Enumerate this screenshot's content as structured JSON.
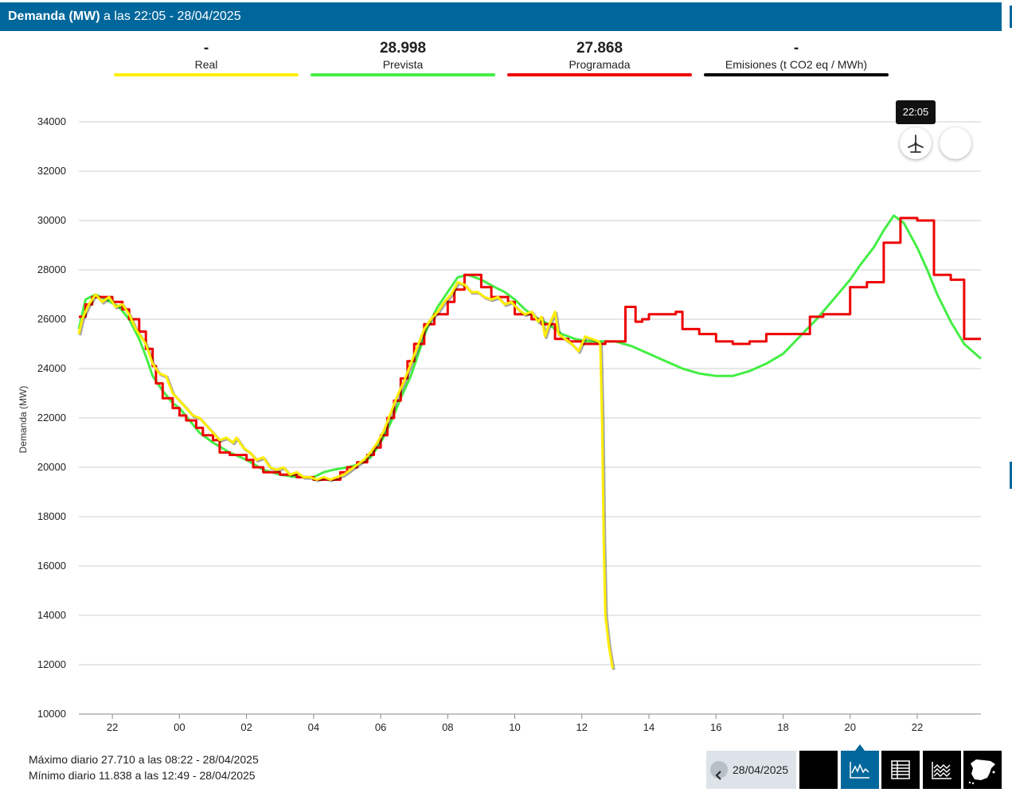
{
  "header": {
    "metric": "Demanda (MW)",
    "time_text": "a las 22:05 - 28/04/2025"
  },
  "stats": [
    {
      "value": "-",
      "label": "Real",
      "color": "#ffee00"
    },
    {
      "value": "28.998",
      "label": "Prevista",
      "color": "#44ee44"
    },
    {
      "value": "27.868",
      "label": "Programada",
      "color": "#ee0000"
    },
    {
      "value": "-",
      "label": "Emisiones (t CO2 eq / MWh)",
      "color": "#000000"
    }
  ],
  "tooltip": {
    "time": "22:05"
  },
  "icons": {
    "wind": "wind-turbine-icon",
    "prev": "chevron-left-icon",
    "chart": "line-chart-icon",
    "table": "table-icon",
    "area": "area-chart-icon",
    "map": "spain-map-icon"
  },
  "daily": {
    "max": "Máximo diario 27.710 a las 08:22 - 28/04/2025",
    "min": "Mínimo diario 11.838 a las 12:49 - 28/04/2025"
  },
  "date_picker": {
    "value": "28/04/2025"
  },
  "chart_data": {
    "type": "line",
    "ylabel": "Demanda (MW)",
    "ylim": [
      10000,
      35000
    ],
    "yticks": [
      10000,
      12000,
      14000,
      16000,
      18000,
      20000,
      22000,
      24000,
      26000,
      28000,
      30000,
      32000,
      34000
    ],
    "xlim": [
      -3,
      23.9
    ],
    "xticks": [
      {
        "v": -2,
        "l": "22"
      },
      {
        "v": 0,
        "l": "00"
      },
      {
        "v": 2,
        "l": "02"
      },
      {
        "v": 4,
        "l": "04"
      },
      {
        "v": 6,
        "l": "06"
      },
      {
        "v": 8,
        "l": "08"
      },
      {
        "v": 10,
        "l": "10"
      },
      {
        "v": 12,
        "l": "12"
      },
      {
        "v": 14,
        "l": "14"
      },
      {
        "v": 16,
        "l": "16"
      },
      {
        "v": 18,
        "l": "18"
      },
      {
        "v": 20,
        "l": "20"
      },
      {
        "v": 22,
        "l": "22"
      }
    ],
    "grid": true,
    "series": [
      {
        "name": "Prevista",
        "color": "#44ee44",
        "step": false,
        "points": [
          [
            -3,
            25600
          ],
          [
            -2.8,
            26800
          ],
          [
            -2.5,
            27000
          ],
          [
            -2.2,
            26800
          ],
          [
            -1.8,
            26500
          ],
          [
            -1.5,
            26000
          ],
          [
            -1.2,
            25200
          ],
          [
            -1,
            24500
          ],
          [
            -0.8,
            23700
          ],
          [
            -0.5,
            23100
          ],
          [
            -0.2,
            22600
          ],
          [
            0,
            22400
          ],
          [
            0.3,
            21900
          ],
          [
            0.6,
            21400
          ],
          [
            1,
            21000
          ],
          [
            1.5,
            20600
          ],
          [
            2,
            20300
          ],
          [
            2.5,
            19900
          ],
          [
            3,
            19700
          ],
          [
            3.5,
            19600
          ],
          [
            4,
            19600
          ],
          [
            4.3,
            19800
          ],
          [
            4.6,
            19900
          ],
          [
            5,
            20000
          ],
          [
            5.3,
            20100
          ],
          [
            5.7,
            20400
          ],
          [
            6,
            21000
          ],
          [
            6.3,
            21800
          ],
          [
            6.6,
            22800
          ],
          [
            6.9,
            23700
          ],
          [
            7.1,
            24500
          ],
          [
            7.4,
            25700
          ],
          [
            7.7,
            26500
          ],
          [
            8,
            27100
          ],
          [
            8.3,
            27700
          ],
          [
            8.6,
            27800
          ],
          [
            9,
            27600
          ],
          [
            9.4,
            27300
          ],
          [
            9.7,
            27100
          ],
          [
            10,
            26800
          ],
          [
            10.3,
            26400
          ],
          [
            10.6,
            26100
          ],
          [
            11,
            25800
          ],
          [
            11.4,
            25400
          ],
          [
            11.8,
            25200
          ],
          [
            12.2,
            25100
          ],
          [
            12.6,
            25100
          ],
          [
            13,
            25100
          ],
          [
            13.5,
            24900
          ],
          [
            14,
            24600
          ],
          [
            14.5,
            24300
          ],
          [
            15,
            24000
          ],
          [
            15.5,
            23800
          ],
          [
            16,
            23700
          ],
          [
            16.5,
            23700
          ],
          [
            17,
            23900
          ],
          [
            17.5,
            24200
          ],
          [
            18,
            24600
          ],
          [
            18.5,
            25300
          ],
          [
            19,
            26000
          ],
          [
            19.5,
            26800
          ],
          [
            20,
            27600
          ],
          [
            20.3,
            28200
          ],
          [
            20.7,
            28900
          ],
          [
            21,
            29600
          ],
          [
            21.3,
            30200
          ],
          [
            21.6,
            29900
          ],
          [
            22,
            28900
          ],
          [
            22.3,
            28000
          ],
          [
            22.6,
            27000
          ],
          [
            23,
            25900
          ],
          [
            23.4,
            25000
          ],
          [
            23.9,
            24400
          ]
        ]
      },
      {
        "name": "Programada",
        "color": "#ee0000",
        "step": true,
        "points": [
          [
            -3,
            26100
          ],
          [
            -2.8,
            26600
          ],
          [
            -2.6,
            26900
          ],
          [
            -2,
            26700
          ],
          [
            -1.7,
            26400
          ],
          [
            -1.5,
            26000
          ],
          [
            -1.2,
            25500
          ],
          [
            -1,
            24800
          ],
          [
            -0.8,
            24100
          ],
          [
            -0.7,
            23400
          ],
          [
            -0.5,
            22800
          ],
          [
            -0.2,
            22400
          ],
          [
            0,
            22100
          ],
          [
            0.2,
            21900
          ],
          [
            0.5,
            21600
          ],
          [
            0.7,
            21300
          ],
          [
            1,
            21100
          ],
          [
            1.2,
            20600
          ],
          [
            1.5,
            20500
          ],
          [
            2,
            20300
          ],
          [
            2.2,
            20000
          ],
          [
            2.5,
            19800
          ],
          [
            3,
            19700
          ],
          [
            3.5,
            19600
          ],
          [
            4,
            19500
          ],
          [
            4.5,
            19500
          ],
          [
            4.8,
            19800
          ],
          [
            5,
            20000
          ],
          [
            5.3,
            20200
          ],
          [
            5.6,
            20500
          ],
          [
            5.8,
            20800
          ],
          [
            6,
            21300
          ],
          [
            6.2,
            22000
          ],
          [
            6.4,
            22700
          ],
          [
            6.6,
            23600
          ],
          [
            6.8,
            24300
          ],
          [
            7,
            25000
          ],
          [
            7.3,
            25800
          ],
          [
            7.6,
            26200
          ],
          [
            8,
            26700
          ],
          [
            8.2,
            27200
          ],
          [
            8.5,
            27800
          ],
          [
            9,
            27300
          ],
          [
            9.3,
            26900
          ],
          [
            9.8,
            26700
          ],
          [
            10,
            26200
          ],
          [
            10.5,
            26000
          ],
          [
            10.8,
            25800
          ],
          [
            11.2,
            25200
          ],
          [
            11.6,
            25100
          ],
          [
            12,
            25000
          ],
          [
            12.5,
            25000
          ],
          [
            12.7,
            25100
          ],
          [
            13.3,
            26500
          ],
          [
            13.6,
            25900
          ],
          [
            13.8,
            26000
          ],
          [
            14,
            26200
          ],
          [
            14.8,
            26300
          ],
          [
            15,
            25600
          ],
          [
            15.5,
            25400
          ],
          [
            16,
            25100
          ],
          [
            16.5,
            25000
          ],
          [
            17,
            25100
          ],
          [
            17.5,
            25400
          ],
          [
            18,
            25400
          ],
          [
            18.8,
            26100
          ],
          [
            19.2,
            26200
          ],
          [
            20,
            27300
          ],
          [
            20.5,
            27500
          ],
          [
            21,
            29100
          ],
          [
            21.5,
            30100
          ],
          [
            22,
            30000
          ],
          [
            22.5,
            27800
          ],
          [
            23,
            27600
          ],
          [
            23.4,
            25200
          ],
          [
            23.9,
            25200
          ]
        ]
      },
      {
        "name": "Real",
        "color": "#ffee00",
        "step": false,
        "points": [
          [
            -3,
            25400
          ],
          [
            -2.9,
            26000
          ],
          [
            -2.7,
            26600
          ],
          [
            -2.5,
            27000
          ],
          [
            -2.3,
            26700
          ],
          [
            -2.1,
            26900
          ],
          [
            -1.9,
            26500
          ],
          [
            -1.7,
            26600
          ],
          [
            -1.5,
            26200
          ],
          [
            -1.3,
            25600
          ],
          [
            -1.1,
            25200
          ],
          [
            -1,
            25000
          ],
          [
            -0.8,
            24200
          ],
          [
            -0.6,
            23800
          ],
          [
            -0.4,
            23700
          ],
          [
            -0.2,
            23000
          ],
          [
            0,
            22700
          ],
          [
            0.2,
            22400
          ],
          [
            0.4,
            22100
          ],
          [
            0.6,
            22000
          ],
          [
            0.8,
            21700
          ],
          [
            1,
            21400
          ],
          [
            1.2,
            21100
          ],
          [
            1.4,
            21200
          ],
          [
            1.6,
            21000
          ],
          [
            1.7,
            21200
          ],
          [
            1.9,
            20800
          ],
          [
            2.1,
            20600
          ],
          [
            2.3,
            20300
          ],
          [
            2.5,
            20400
          ],
          [
            2.7,
            20000
          ],
          [
            2.9,
            19900
          ],
          [
            3.1,
            20000
          ],
          [
            3.3,
            19700
          ],
          [
            3.5,
            19800
          ],
          [
            3.7,
            19600
          ],
          [
            3.9,
            19600
          ],
          [
            4.1,
            19500
          ],
          [
            4.3,
            19600
          ],
          [
            4.5,
            19500
          ],
          [
            4.7,
            19600
          ],
          [
            4.9,
            19700
          ],
          [
            5.1,
            19900
          ],
          [
            5.3,
            20100
          ],
          [
            5.5,
            20300
          ],
          [
            5.7,
            20600
          ],
          [
            5.9,
            21000
          ],
          [
            6.1,
            21500
          ],
          [
            6.3,
            22200
          ],
          [
            6.5,
            22900
          ],
          [
            6.7,
            23500
          ],
          [
            6.9,
            24200
          ],
          [
            7.1,
            24900
          ],
          [
            7.3,
            25600
          ],
          [
            7.5,
            26000
          ],
          [
            7.7,
            26300
          ],
          [
            7.9,
            26700
          ],
          [
            8.1,
            27000
          ],
          [
            8.3,
            27500
          ],
          [
            8.5,
            27400
          ],
          [
            8.7,
            27100
          ],
          [
            8.9,
            27100
          ],
          [
            9.1,
            26900
          ],
          [
            9.3,
            26800
          ],
          [
            9.5,
            26900
          ],
          [
            9.7,
            26600
          ],
          [
            9.9,
            26700
          ],
          [
            10.1,
            26400
          ],
          [
            10.3,
            26200
          ],
          [
            10.5,
            26300
          ],
          [
            10.7,
            25900
          ],
          [
            10.8,
            26100
          ],
          [
            10.9,
            25300
          ],
          [
            11,
            25700
          ],
          [
            11.2,
            26300
          ],
          [
            11.3,
            25400
          ],
          [
            11.5,
            25200
          ],
          [
            11.7,
            25000
          ],
          [
            11.9,
            24700
          ],
          [
            12.1,
            25300
          ],
          [
            12.3,
            25200
          ],
          [
            12.5,
            25100
          ],
          [
            12.55,
            25000
          ],
          [
            12.6,
            22000
          ],
          [
            12.65,
            17000
          ],
          [
            12.7,
            14000
          ],
          [
            12.8,
            12800
          ],
          [
            12.92,
            11838
          ]
        ]
      }
    ]
  }
}
